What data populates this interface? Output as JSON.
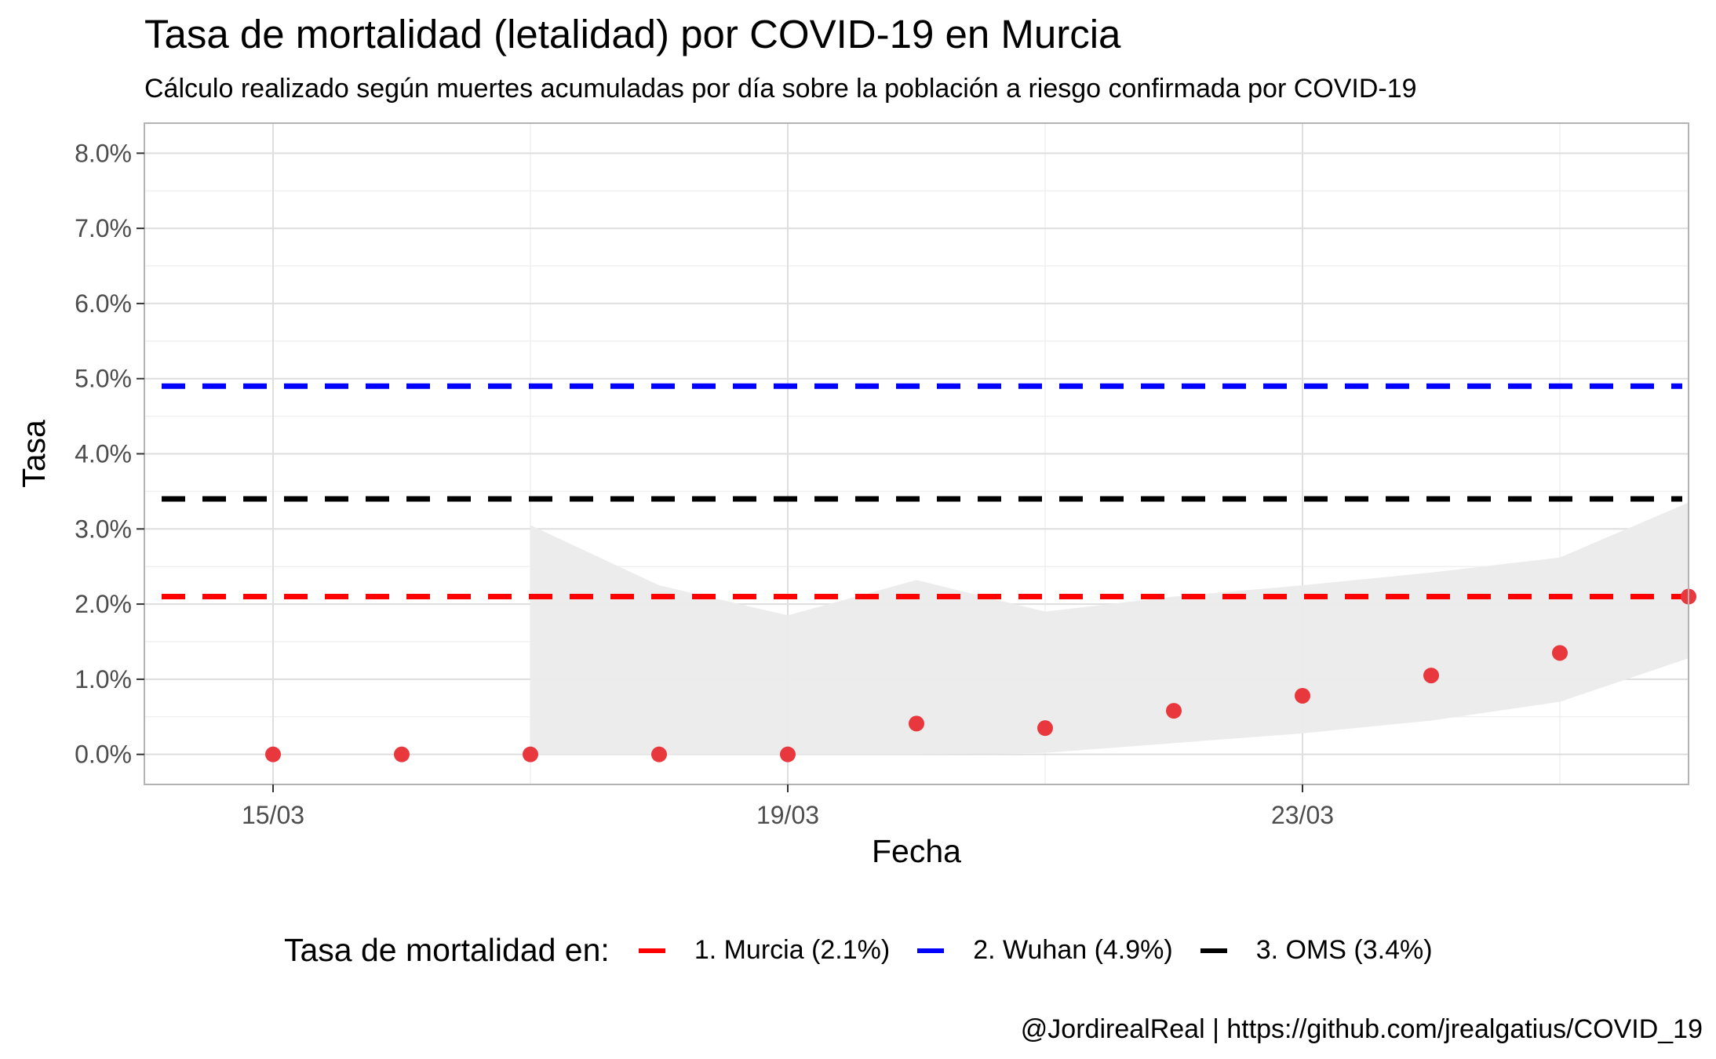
{
  "title": "Tasa de mortalidad (letalidad) por COVID-19 en Murcia",
  "subtitle": "Cálculo realizado según muertes acumuladas por día sobre la población a riesgo confirmada por COVID-19",
  "caption": "@JordirealReal | https://github.com/jrealgatius/COVID_19",
  "legend": {
    "title": "Tasa de mortalidad en:",
    "items": [
      {
        "label": "1. Murcia (2.1%)",
        "color": "#ff0000"
      },
      {
        "label": "2. Wuhan (4.9%)",
        "color": "#0000ff"
      },
      {
        "label": "3. OMS (3.4%)",
        "color": "#000000"
      }
    ]
  },
  "chart_data": {
    "type": "scatter",
    "xlabel": "Fecha",
    "ylabel": "Tasa",
    "x_ticks": [
      "15/03",
      "19/03",
      "23/03"
    ],
    "x_tick_values": [
      "2020-03-15",
      "2020-03-19",
      "2020-03-23"
    ],
    "y_ticks": [
      "0.0%",
      "1.0%",
      "2.0%",
      "3.0%",
      "4.0%",
      "5.0%",
      "6.0%",
      "7.0%",
      "8.0%"
    ],
    "ylim": [
      -0.4,
      8.4
    ],
    "xlim": [
      "2020-03-14",
      "2020-03-26"
    ],
    "grid": true,
    "legend_position": "bottom",
    "points": {
      "color": "#e8383d",
      "x": [
        "2020-03-15",
        "2020-03-16",
        "2020-03-17",
        "2020-03-18",
        "2020-03-19",
        "2020-03-20",
        "2020-03-21",
        "2020-03-22",
        "2020-03-23",
        "2020-03-24",
        "2020-03-25",
        "2020-03-26"
      ],
      "y": [
        0.0,
        0.0,
        0.0,
        0.0,
        0.0,
        0.41,
        0.35,
        0.58,
        0.78,
        1.05,
        1.35,
        2.1
      ]
    },
    "confidence_band": {
      "color": "#ebebeb",
      "x": [
        "2020-03-17",
        "2020-03-18",
        "2020-03-19",
        "2020-03-20",
        "2020-03-21",
        "2020-03-22",
        "2020-03-23",
        "2020-03-24",
        "2020-03-25",
        "2020-03-26"
      ],
      "lower": [
        0.0,
        0.0,
        0.0,
        0.0,
        0.02,
        0.15,
        0.28,
        0.45,
        0.7,
        1.28
      ],
      "upper": [
        3.05,
        2.25,
        1.85,
        2.32,
        1.9,
        2.1,
        2.25,
        2.42,
        2.62,
        3.35
      ]
    },
    "reference_lines": [
      {
        "name": "1. Murcia (2.1%)",
        "value": 2.1,
        "color": "#ff0000"
      },
      {
        "name": "2. Wuhan (4.9%)",
        "value": 4.9,
        "color": "#0000ff"
      },
      {
        "name": "3. OMS (3.4%)",
        "value": 3.4,
        "color": "#000000"
      }
    ]
  }
}
